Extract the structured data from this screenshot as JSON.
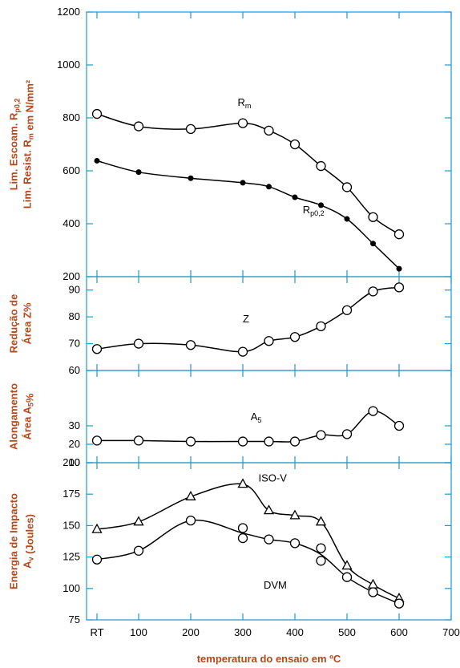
{
  "colors": {
    "axis": "#1a9ad6",
    "label": "#b5471b",
    "mark": "#000000"
  },
  "x_axis": {
    "label": "temperatura do ensaio em ºC",
    "ticks": [
      {
        "pos": 20,
        "label": "RT"
      },
      {
        "pos": 100,
        "label": "100"
      },
      {
        "pos": 200,
        "label": "200"
      },
      {
        "pos": 300,
        "label": "300"
      },
      {
        "pos": 400,
        "label": "400"
      },
      {
        "pos": 500,
        "label": "500"
      },
      {
        "pos": 600,
        "label": "600"
      },
      {
        "pos": 700,
        "label": "700"
      }
    ],
    "range": [
      0,
      700
    ]
  },
  "chart_data": [
    {
      "type": "line",
      "ylabel_lines": [
        {
          "parts": [
            {
              "t": "Lim. Escoam. R"
            },
            {
              "t": "p0,2",
              "sub": true
            }
          ]
        },
        {
          "parts": [
            {
              "t": "Lim. Resist. R"
            },
            {
              "t": "m",
              "sub": true
            },
            {
              "t": " em N/mm²"
            }
          ]
        }
      ],
      "ylim": [
        200,
        1200
      ],
      "yticks": [
        200,
        400,
        600,
        800,
        1000,
        1200
      ],
      "series": [
        {
          "name": "Rm",
          "name_main": "R",
          "name_sub": "m",
          "marker": "open-circle",
          "label_at": [
            290,
            845
          ],
          "x": [
            20,
            100,
            200,
            300,
            350,
            400,
            450,
            500,
            550,
            600
          ],
          "y": [
            815,
            768,
            758,
            780,
            752,
            700,
            618,
            538,
            425,
            360
          ]
        },
        {
          "name": "Rp0,2",
          "name_main": "R",
          "name_sub": "p0,2",
          "marker": "filled-dot",
          "label_at": [
            415,
            440
          ],
          "x": [
            20,
            100,
            200,
            300,
            350,
            400,
            450,
            500,
            550,
            600
          ],
          "y": [
            638,
            595,
            572,
            555,
            540,
            500,
            470,
            418,
            325,
            230
          ]
        }
      ]
    },
    {
      "type": "line",
      "ylabel_lines": [
        {
          "parts": [
            {
              "t": "Redução de"
            }
          ]
        },
        {
          "parts": [
            {
              "t": "Área Z%"
            }
          ]
        }
      ],
      "ylim": [
        60,
        95
      ],
      "yticks": [
        70,
        80,
        90
      ],
      "series": [
        {
          "name": "Z",
          "name_main": "Z",
          "name_sub": "",
          "marker": "open-circle",
          "label_at": [
            300,
            78
          ],
          "x": [
            20,
            100,
            200,
            300,
            350,
            400,
            450,
            500,
            550,
            600
          ],
          "y": [
            68,
            70,
            69.5,
            67,
            71,
            72.5,
            76.5,
            82.5,
            89.5,
            91
          ]
        }
      ]
    },
    {
      "type": "line",
      "ylabel_lines": [
        {
          "parts": [
            {
              "t": "Alongamento"
            }
          ]
        },
        {
          "parts": [
            {
              "t": "Área A"
            },
            {
              "t": "5",
              "sub": true
            },
            {
              "t": "%"
            }
          ]
        }
      ],
      "ylim": [
        10,
        60
      ],
      "yticks": [
        10,
        20,
        30,
        60
      ],
      "series": [
        {
          "name": "A5",
          "name_main": "A",
          "name_sub": "5",
          "marker": "open-circle",
          "label_at": [
            315,
            33
          ],
          "x": [
            20,
            100,
            200,
            300,
            350,
            400,
            450,
            500,
            550,
            600
          ],
          "y": [
            22,
            22,
            21.5,
            21.5,
            21.5,
            21.5,
            25,
            25.5,
            38,
            30
          ]
        }
      ]
    },
    {
      "type": "line",
      "ylabel_lines": [
        {
          "parts": [
            {
              "t": "Energia de Impacto"
            }
          ]
        },
        {
          "parts": [
            {
              "t": "A"
            },
            {
              "t": "v",
              "sub": true
            },
            {
              "t": " (Joules)"
            }
          ]
        }
      ],
      "ylim": [
        75,
        200
      ],
      "yticks": [
        75,
        100,
        125,
        150,
        175,
        200
      ],
      "series": [
        {
          "name": "ISO-V",
          "name_main": "ISO-V",
          "name_sub": "",
          "marker": "open-triangle",
          "label_at": [
            330,
            185
          ],
          "x": [
            20,
            100,
            200,
            300,
            350,
            400,
            450,
            500,
            550,
            600
          ],
          "y": [
            147,
            153,
            173,
            183,
            162,
            158,
            153,
            118,
            103,
            92
          ]
        },
        {
          "name": "DVM",
          "name_main": "DVM",
          "name_sub": "",
          "marker": "open-circle",
          "label_at": [
            340,
            100
          ],
          "x": [
            20,
            100,
            200,
            300,
            300,
            350,
            400,
            450,
            450,
            500,
            550,
            600
          ],
          "y": [
            123,
            130,
            154,
            148,
            140,
            139,
            136,
            132,
            122,
            109,
            97,
            88
          ]
        }
      ]
    }
  ]
}
